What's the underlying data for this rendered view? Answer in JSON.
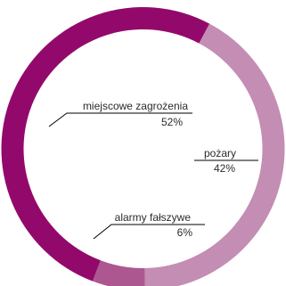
{
  "chart_data": {
    "type": "pie",
    "donut": true,
    "title": "",
    "slices": [
      {
        "label": "miejscowe zagrożenia",
        "value": 52,
        "value_label": "52%",
        "color": "#93096b"
      },
      {
        "label": "pożary",
        "value": 42,
        "value_label": "42%",
        "color": "#c38db4"
      },
      {
        "label": "alarmy fałszywe",
        "value": 6,
        "value_label": "6%",
        "color": "#ad5790"
      }
    ],
    "legend": "none"
  }
}
